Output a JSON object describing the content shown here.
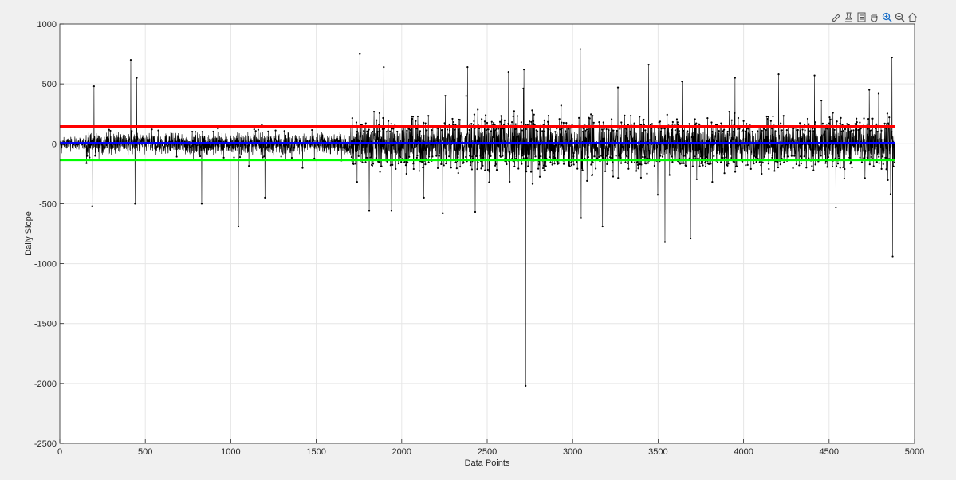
{
  "toolbar": {
    "buttons": [
      {
        "icon": "edit-plot-icon"
      },
      {
        "icon": "data-cursor-icon"
      },
      {
        "icon": "brush-icon"
      },
      {
        "icon": "pan-hand-icon"
      },
      {
        "icon": "zoom-in-icon"
      },
      {
        "icon": "zoom-out-icon"
      },
      {
        "icon": "restore-view-home-icon"
      }
    ]
  },
  "colors": {
    "background": "#f0f0f0",
    "axes_background": "#ffffff",
    "data_series": "#000000",
    "upper_threshold": "#ff0000",
    "mean_line": "#0000ff",
    "lower_threshold": "#00ff00",
    "grid": "#e6e6e6"
  },
  "chart_data": {
    "type": "line",
    "title": "",
    "xlabel": "Data Points",
    "ylabel": "Daily Slope",
    "xlim": [
      0,
      5000
    ],
    "ylim": [
      -2500,
      1000
    ],
    "xticks": [
      0,
      500,
      1000,
      1500,
      2000,
      2500,
      3000,
      3500,
      4000,
      4500,
      5000
    ],
    "xtick_labels": [
      "0",
      "500",
      "1000",
      "1500",
      "2000",
      "2500",
      "3000",
      "3500",
      "4000",
      "4500",
      "5000"
    ],
    "yticks": [
      1000,
      500,
      0,
      -500,
      -1000,
      -1500,
      -2000,
      -2500
    ],
    "ytick_labels": [
      "1000",
      "500",
      "0",
      "-500",
      "-1000",
      "-1500",
      "-2000",
      "-2500"
    ],
    "grid": true,
    "series": [
      {
        "kind": "noisy-line-with-markers",
        "color": "#000000",
        "n_points": 4885,
        "x_start": 1,
        "x_end": 4885,
        "baseline": 0,
        "peaks": [
          {
            "x": 10,
            "y": -80
          },
          {
            "x": 200,
            "y": 480
          },
          {
            "x": 190,
            "y": -520
          },
          {
            "x": 415,
            "y": 700
          },
          {
            "x": 450,
            "y": 550
          },
          {
            "x": 440,
            "y": -500
          },
          {
            "x": 830,
            "y": -500
          },
          {
            "x": 1045,
            "y": -690
          },
          {
            "x": 1200,
            "y": -450
          },
          {
            "x": 1755,
            "y": 750
          },
          {
            "x": 1810,
            "y": -560
          },
          {
            "x": 1895,
            "y": 640
          },
          {
            "x": 1940,
            "y": -560
          },
          {
            "x": 2130,
            "y": -450
          },
          {
            "x": 2240,
            "y": -580
          },
          {
            "x": 2255,
            "y": 400
          },
          {
            "x": 2385,
            "y": 640
          },
          {
            "x": 2430,
            "y": -570
          },
          {
            "x": 2625,
            "y": 600
          },
          {
            "x": 2715,
            "y": 620
          },
          {
            "x": 2725,
            "y": -2020
          },
          {
            "x": 3045,
            "y": 790
          },
          {
            "x": 3050,
            "y": -620
          },
          {
            "x": 3175,
            "y": -690
          },
          {
            "x": 3265,
            "y": 470
          },
          {
            "x": 3445,
            "y": 660
          },
          {
            "x": 3540,
            "y": -820
          },
          {
            "x": 3690,
            "y": -790
          },
          {
            "x": 3640,
            "y": 520
          },
          {
            "x": 3950,
            "y": 550
          },
          {
            "x": 4205,
            "y": 580
          },
          {
            "x": 4415,
            "y": 570
          },
          {
            "x": 4540,
            "y": -530
          },
          {
            "x": 4735,
            "y": 450
          },
          {
            "x": 4868,
            "y": 720
          },
          {
            "x": 4872,
            "y": -940
          },
          {
            "x": 4860,
            "y": -420
          }
        ]
      },
      {
        "kind": "horizontal-line",
        "color": "#ff0000",
        "y": 145,
        "x_range": [
          0,
          4885
        ]
      },
      {
        "kind": "horizontal-line",
        "color": "#0000ff",
        "y": 5,
        "x_range": [
          0,
          4885
        ]
      },
      {
        "kind": "horizontal-line",
        "color": "#00ff00",
        "y": -135,
        "x_range": [
          0,
          4885
        ]
      }
    ]
  }
}
